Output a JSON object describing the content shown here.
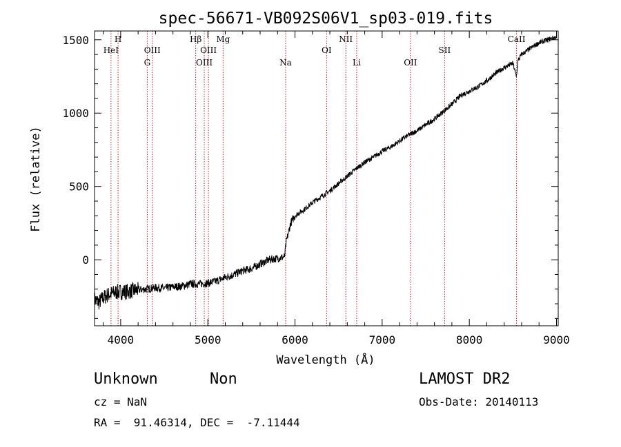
{
  "info": {
    "class": "Unknown",
    "subclass": "Non",
    "survey": "LAMOST DR2",
    "redshift": "cz = NaN",
    "obs_date": "Obs-Date: 20140113",
    "coords": "RA =  91.46314, DEC =  -7.11444"
  },
  "chart_data": {
    "type": "line",
    "title": "spec-56671-VB092S06V1_sp03-019.fits",
    "xlabel": "Wavelength (Å)",
    "ylabel": "Flux (relative)",
    "xlim": [
      3700,
      9020
    ],
    "ylim": [
      -450,
      1560
    ],
    "xticks": [
      4000,
      5000,
      6000,
      7000,
      8000,
      9000
    ],
    "yticks": [
      0,
      500,
      1000,
      1500
    ],
    "xtick_labels": [
      "4000",
      "5000",
      "6000",
      "7000",
      "8000",
      "9000"
    ],
    "ytick_labels": [
      "0",
      "500",
      "1000",
      "1500"
    ],
    "grid": false,
    "line_color": "#000000",
    "marker_color": "#b22222",
    "spectral_lines": [
      {
        "label": "HeI",
        "wavelength": 3889,
        "row": 1
      },
      {
        "label": "H",
        "wavelength": 3970,
        "row": 0
      },
      {
        "label": "G",
        "wavelength": 4305,
        "row": 2
      },
      {
        "label": "OIII",
        "wavelength": 4363,
        "row": 1
      },
      {
        "label": "Hβ",
        "wavelength": 4861,
        "row": 0
      },
      {
        "label": "OIII",
        "wavelength": 4959,
        "row": 2
      },
      {
        "label": "OIII",
        "wavelength": 5007,
        "row": 1
      },
      {
        "label": "Mg",
        "wavelength": 5175,
        "row": 0
      },
      {
        "label": "Na",
        "wavelength": 5893,
        "row": 2
      },
      {
        "label": "OI",
        "wavelength": 6363,
        "row": 1
      },
      {
        "label": "NII",
        "wavelength": 6583,
        "row": 0
      },
      {
        "label": "Li",
        "wavelength": 6708,
        "row": 2
      },
      {
        "label": "OII",
        "wavelength": 7325,
        "row": 2
      },
      {
        "label": "SII",
        "wavelength": 7717,
        "row": 1
      },
      {
        "label": "CaII",
        "wavelength": 8542,
        "row": 0
      }
    ],
    "series": [
      {
        "x": [
          3700,
          3750,
          3800,
          3850,
          3900,
          3950,
          4000,
          4100,
          4200,
          4300,
          4400,
          4500,
          4600,
          4700,
          4800,
          4900,
          5000,
          5100,
          5200,
          5300,
          5400,
          5500,
          5600,
          5700,
          5800,
          5880,
          5900,
          5950,
          6000,
          6100,
          6200,
          6300,
          6400,
          6500,
          6600,
          6700,
          6800,
          6900,
          7000,
          7100,
          7200,
          7300,
          7400,
          7500,
          7600,
          7700,
          7800,
          7900,
          8000,
          8100,
          8200,
          8300,
          8400,
          8500,
          8540,
          8560,
          8600,
          8700,
          8800,
          8900,
          9000
        ],
        "y": [
          -270,
          -290,
          -260,
          -240,
          -230,
          -220,
          -220,
          -215,
          -205,
          -200,
          -190,
          -195,
          -185,
          -180,
          -165,
          -165,
          -160,
          -145,
          -120,
          -100,
          -75,
          -60,
          -30,
          0,
          10,
          20,
          120,
          250,
          300,
          340,
          390,
          430,
          470,
          520,
          570,
          620,
          665,
          700,
          740,
          770,
          810,
          850,
          880,
          920,
          960,
          1010,
          1060,
          1120,
          1150,
          1180,
          1220,
          1270,
          1310,
          1340,
          1250,
          1360,
          1400,
          1440,
          1480,
          1500,
          1520
        ]
      }
    ]
  }
}
